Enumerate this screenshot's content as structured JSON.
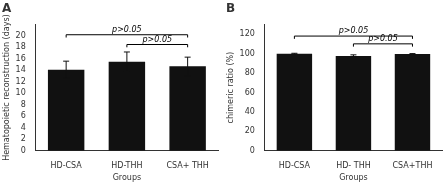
{
  "chart_data": [
    {
      "type": "bar",
      "title": "A",
      "categories": [
        "HD-CSA",
        "HD-THH",
        "CSA+ THH"
      ],
      "values": [
        14.1,
        15.5,
        14.7
      ],
      "errors": [
        1.5,
        1.7,
        1.6
      ],
      "color": "#111111",
      "xlabel": "Groups",
      "ylabel": "Hematopoietic reconstruction (days)",
      "ylim": [
        0,
        22
      ],
      "yticks": [
        0,
        2,
        4,
        6,
        8,
        10,
        12,
        14,
        16,
        18,
        20
      ],
      "grid": false,
      "annotations": [
        {
          "text": "p>0.05",
          "x1": "HD-CSA",
          "x2": "CSA+ THH",
          "y": 20.2
        },
        {
          "text": "p>0.05",
          "x1": "HD-THH",
          "x2": "CSA+ THH",
          "y": 18.5
        }
      ]
    },
    {
      "type": "bar",
      "title": "B",
      "categories": [
        "HD-CSA",
        "HD- THH",
        "CSA+THH"
      ],
      "values": [
        99.8,
        97.5,
        99.5
      ],
      "errors": [
        0.5,
        1.2,
        0.5
      ],
      "color": "#111111",
      "xlabel": "Groups",
      "ylabel": "chimeric ratio (%)",
      "ylim": [
        0,
        130
      ],
      "yticks": [
        0,
        20,
        40,
        60,
        80,
        100,
        120
      ],
      "grid": false,
      "annotations": [
        {
          "text": "p>0.05",
          "x1": "HD-CSA",
          "x2": "CSA+THH",
          "y": 118
        },
        {
          "text": "p>0.05",
          "x1": "HD- THH",
          "x2": "CSA+THH",
          "y": 110
        }
      ]
    }
  ]
}
